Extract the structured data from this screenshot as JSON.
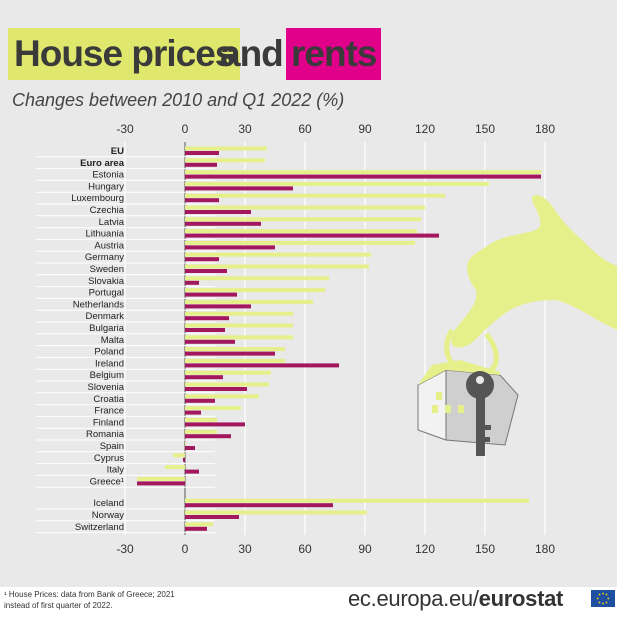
{
  "header": {
    "title_part1": "House prices",
    "title_part2": "and",
    "title_part3": "rents",
    "subtitle": "Changes between 2010 and Q1 2022 (%)"
  },
  "colors": {
    "house_prices": "#e6f08a",
    "rents": "#a3175f",
    "title_house_bg": "#dfe86d",
    "title_rents_bg": "#e0008a",
    "panel": "#e9e9e9"
  },
  "chart_data": {
    "type": "bar",
    "orientation": "horizontal",
    "xlim": [
      -30,
      180
    ],
    "xticks": [
      "-30",
      "0",
      "30",
      "60",
      "90",
      "120",
      "150",
      "180"
    ],
    "grid": true,
    "categories": [
      "EU",
      "Euro area",
      "Estonia",
      "Hungary",
      "Luxembourg",
      "Czechia",
      "Latvia",
      "Lithuania",
      "Austria",
      "Germany",
      "Sweden",
      "Slovakia",
      "Portugal",
      "Netherlands",
      "Denmark",
      "Bulgaria",
      "Malta",
      "Poland",
      "Ireland",
      "Belgium",
      "Slovenia",
      "Croatia",
      "France",
      "Finland",
      "Romania",
      "Spain",
      "Cyprus",
      "Italy",
      "Greece¹",
      "Iceland",
      "Norway",
      "Switzerland"
    ],
    "bold_categories": [
      "EU",
      "Euro area"
    ],
    "group_break_before": "Iceland",
    "series": [
      {
        "values": [
          41,
          40,
          178,
          152,
          130,
          120,
          118,
          116,
          115,
          93,
          92,
          72,
          70,
          64,
          54,
          54,
          54,
          50,
          50,
          43,
          42,
          37,
          28,
          16,
          16,
          0,
          -6,
          -10,
          -24,
          172,
          91,
          14
        ]
      },
      {
        "values": [
          17,
          16,
          178,
          54,
          17,
          33,
          38,
          127,
          45,
          17,
          21,
          7,
          26,
          33,
          22,
          20,
          25,
          45,
          77,
          19,
          31,
          15,
          8,
          30,
          23,
          5,
          -1,
          7,
          -24,
          74,
          27,
          11
        ]
      }
    ]
  },
  "footnote": {
    "line1": "¹ House Prices: data from Bank of Greece; 2021",
    "line2": "instead of first quarter of 2022."
  },
  "footer": {
    "url_part1": "ec.europa.eu/",
    "url_part2": "eurostat"
  }
}
